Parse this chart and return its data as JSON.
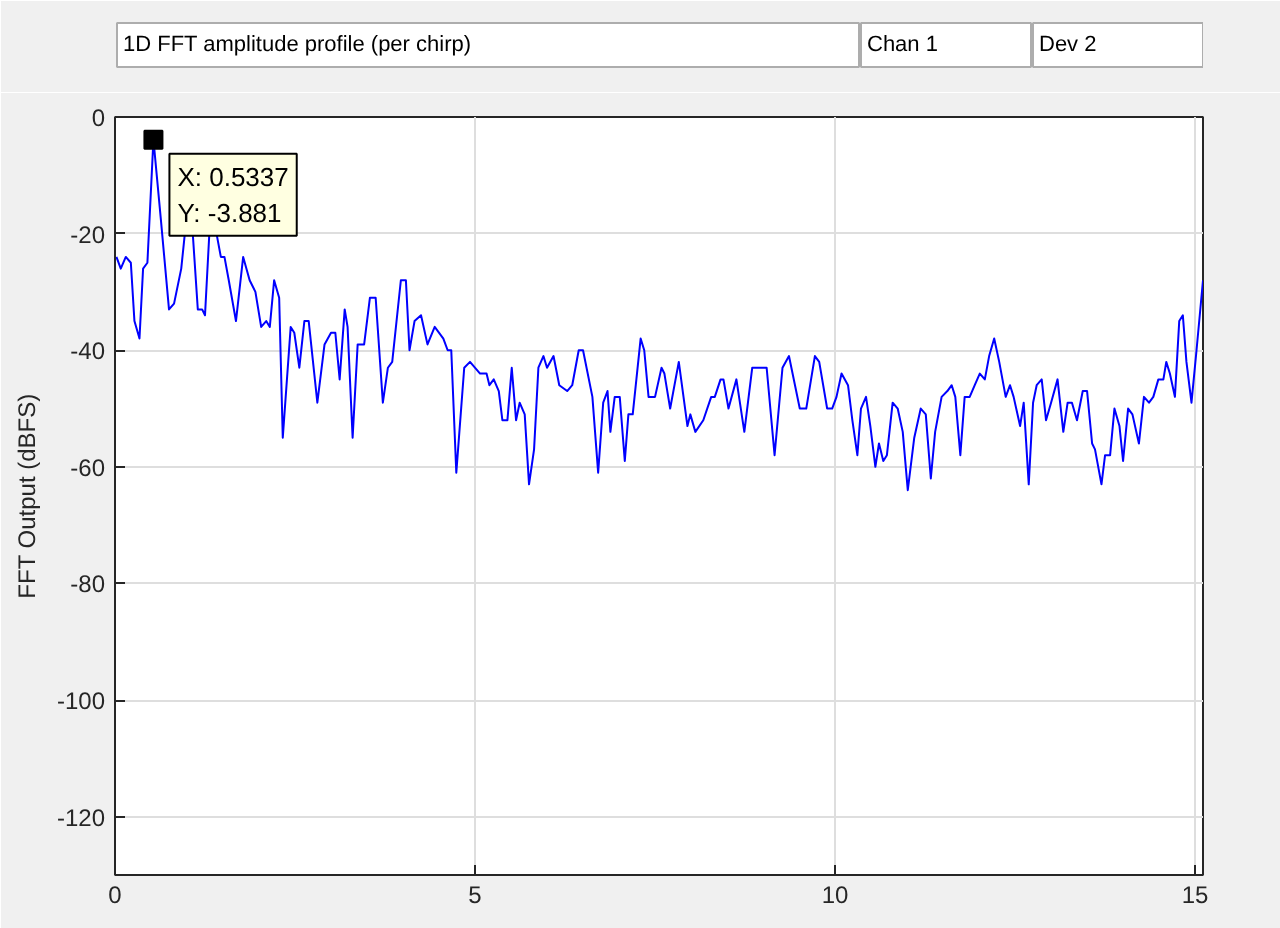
{
  "chart_data": {
    "type": "line",
    "title": "1D FFT amplitude profile (per chirp)",
    "ylabel": "FFT Output (dBFS)",
    "annotations": [
      "Chan 1",
      "Dev 2",
      {
        "text": "X: 0.5337\nY: -3.881",
        "x": 0.5337,
        "y": -3.881
      }
    ],
    "x": [
      0.02,
      0.08,
      0.15,
      0.22,
      0.27,
      0.34,
      0.39,
      0.45,
      0.5337,
      0.64,
      0.75,
      0.82,
      0.92,
      0.97,
      1.02,
      1.08,
      1.15,
      1.21,
      1.25,
      1.31,
      1.36,
      1.41,
      1.47,
      1.52,
      1.58,
      1.68,
      1.78,
      1.87,
      1.95,
      2.03,
      2.1,
      2.15,
      2.21,
      2.28,
      2.33,
      2.44,
      2.49,
      2.56,
      2.63,
      2.69,
      2.81,
      2.91,
      3.0,
      3.06,
      3.12,
      3.19,
      3.23,
      3.3,
      3.37,
      3.46,
      3.54,
      3.62,
      3.72,
      3.79,
      3.85,
      3.97,
      4.04,
      4.09,
      4.16,
      4.25,
      4.34,
      4.44,
      4.56,
      4.62,
      4.67,
      4.74,
      4.85,
      4.93,
      5.07,
      5.16,
      5.2,
      5.26,
      5.33,
      5.38,
      5.45,
      5.51,
      5.57,
      5.62,
      5.69,
      5.75,
      5.82,
      5.88,
      5.95,
      6.0,
      6.09,
      6.17,
      6.28,
      6.35,
      6.44,
      6.5,
      6.63,
      6.71,
      6.78,
      6.84,
      6.88,
      6.94,
      7.01,
      7.08,
      7.13,
      7.19,
      7.3,
      7.35,
      7.41,
      7.5,
      7.59,
      7.63,
      7.71,
      7.83,
      7.95,
      7.99,
      8.06,
      8.17,
      8.28,
      8.33,
      8.41,
      8.45,
      8.52,
      8.63,
      8.74,
      8.85,
      8.92,
      8.98,
      9.05,
      9.16,
      9.27,
      9.36,
      9.51,
      9.6,
      9.72,
      9.78,
      9.89,
      9.96,
      10.02,
      10.09,
      10.18,
      10.24,
      10.31,
      10.36,
      10.43,
      10.49,
      10.56,
      10.61,
      10.67,
      10.72,
      10.8,
      10.87,
      10.94,
      11.01,
      11.1,
      11.19,
      11.26,
      11.33,
      11.39,
      11.48,
      11.56,
      11.62,
      11.67,
      11.74,
      11.8,
      11.87,
      11.94,
      12.01,
      12.08,
      12.14,
      12.21,
      12.28,
      12.37,
      12.43,
      12.48,
      12.57,
      12.62,
      12.69,
      12.75,
      12.8,
      12.87,
      12.93,
      13.0,
      13.09,
      13.17,
      13.23,
      13.29,
      13.36,
      13.44,
      13.5,
      13.57,
      13.61,
      13.7,
      13.75,
      13.82,
      13.88,
      13.95,
      14.0,
      14.07,
      14.13,
      14.22,
      14.29,
      14.36,
      14.42,
      14.49,
      14.56,
      14.6,
      14.65,
      14.72,
      14.78,
      14.83,
      14.88,
      14.95,
      15.02,
      15.11
    ],
    "series": [
      {
        "color": "#0000ff",
        "values": [
          -24,
          -26,
          -24,
          -25,
          -35,
          -38,
          -26,
          -25,
          -3.881,
          -18,
          -33,
          -32,
          -26,
          -20,
          null,
          -20,
          -33,
          -33,
          -34,
          -20,
          null,
          -20,
          -24,
          -24,
          -28,
          -35,
          -24,
          -28,
          -30,
          -36,
          -35,
          -36,
          -28,
          -31,
          -55,
          -36,
          -37,
          -43,
          -35,
          -35,
          -49,
          -39,
          -37,
          -37,
          -45,
          -33,
          -36,
          -55,
          -39,
          -39,
          -31,
          -31,
          -49,
          -43,
          -42,
          -28,
          -28,
          -40,
          -35,
          -34,
          -39,
          -36,
          -38,
          -40,
          -40,
          -61,
          -43,
          -42,
          -44,
          -44,
          -46,
          -45,
          -47,
          -52,
          -52,
          -43,
          -52,
          -49,
          -51,
          -63,
          -57,
          -43,
          -41,
          -43,
          -41,
          -46,
          -47,
          -46,
          -40,
          -40,
          -48,
          -61,
          -49,
          -47,
          -54,
          -48,
          -48,
          -59,
          -51,
          -51,
          -38,
          -40,
          -48,
          -48,
          -43,
          -44,
          -50,
          -42,
          -53,
          -51,
          -54,
          -52,
          -48,
          -48,
          -45,
          -45,
          -50,
          -45,
          -54,
          -43,
          -43,
          -43,
          -43,
          -58,
          -43,
          -41,
          -50,
          -50,
          -41,
          -42,
          -50,
          -50,
          -48,
          -44,
          -46,
          -52,
          -58,
          -50,
          -48,
          -53,
          -60,
          -56,
          -59,
          -58,
          -49,
          -50,
          -54,
          -64,
          -55,
          -50,
          -51,
          -62,
          -54,
          -48,
          -47,
          -46,
          -48,
          -58,
          -48,
          -48,
          -46,
          -44,
          -45,
          -41,
          -38,
          -42,
          -48,
          -46,
          -48,
          -53,
          -49,
          -63,
          -49,
          -46,
          -45,
          -52,
          -49,
          -45,
          -54,
          -49,
          -49,
          -52,
          -47,
          -47,
          -56,
          -57,
          -63,
          -58,
          -58,
          -50,
          -53,
          -59,
          -50,
          -51,
          -56,
          -48,
          -49,
          -48,
          -45,
          -45,
          -42,
          -44,
          -48,
          -35,
          -34,
          -42,
          -49,
          -40,
          -28
        ]
      }
    ],
    "xlim": [
      0,
      15.11
    ],
    "ylim": [
      -130,
      0
    ],
    "xticks": [
      0,
      5,
      10,
      15
    ],
    "yticks": [
      -120,
      -100,
      -80,
      -60,
      -40,
      -20,
      0
    ],
    "grid": true
  }
}
